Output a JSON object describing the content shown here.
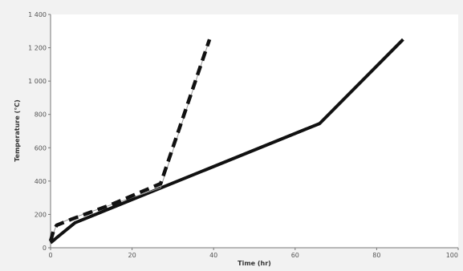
{
  "chart_data": {
    "type": "line",
    "title": "",
    "xlabel": "Time (hr)",
    "ylabel": "Temperature (°C)",
    "xlim": [
      0,
      100
    ],
    "ylim": [
      0,
      1400
    ],
    "x_ticks": [
      0,
      20,
      40,
      60,
      80,
      100
    ],
    "x_tick_labels": [
      "0",
      "20",
      "40",
      "60",
      "80",
      "100"
    ],
    "y_ticks": [
      0,
      200,
      400,
      600,
      800,
      1000,
      1200,
      1400
    ],
    "y_tick_labels": [
      "0",
      "200",
      "400",
      "600",
      "800",
      "1 000",
      "1 200",
      "1 400"
    ],
    "grid": false,
    "legend": false,
    "series": [
      {
        "style": "solid",
        "color": "#111111",
        "points": [
          [
            0,
            30
          ],
          [
            1.5,
            60
          ],
          [
            6,
            150
          ],
          [
            66,
            745
          ],
          [
            86.5,
            1250
          ]
        ]
      },
      {
        "style": "dashed",
        "color": "#111111",
        "points": [
          [
            0,
            40
          ],
          [
            0.7,
            100
          ],
          [
            1.5,
            135
          ],
          [
            5,
            170
          ],
          [
            15,
            260
          ],
          [
            27,
            385
          ],
          [
            39,
            1250
          ]
        ]
      },
      {
        "style": "thin",
        "color": "#999999",
        "points": [
          [
            0,
            40
          ],
          [
            1.5,
            140
          ],
          [
            5,
            175
          ],
          [
            27,
            360
          ],
          [
            39,
            1250
          ]
        ]
      }
    ]
  }
}
